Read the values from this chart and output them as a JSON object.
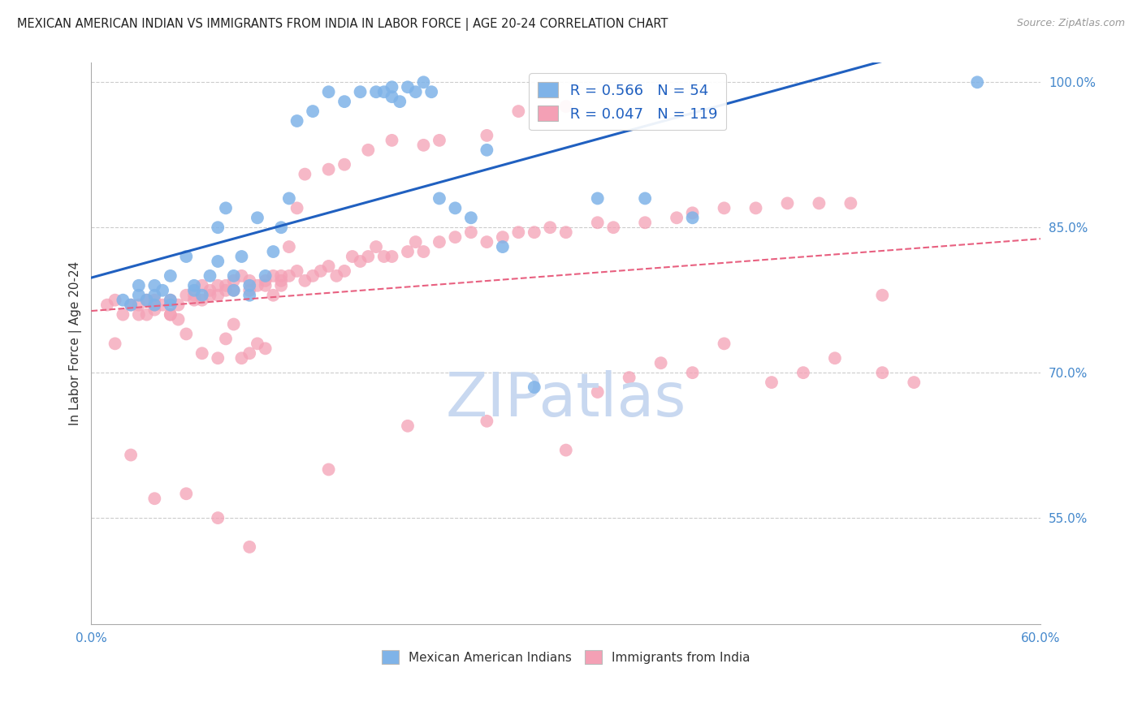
{
  "title": "MEXICAN AMERICAN INDIAN VS IMMIGRANTS FROM INDIA IN LABOR FORCE | AGE 20-24 CORRELATION CHART",
  "source": "Source: ZipAtlas.com",
  "ylabel": "In Labor Force | Age 20-24",
  "xlim": [
    0.0,
    0.6
  ],
  "ylim": [
    0.44,
    1.02
  ],
  "xticks": [
    0.0,
    0.1,
    0.2,
    0.3,
    0.4,
    0.5,
    0.6
  ],
  "xticklabels": [
    "0.0%",
    "",
    "",
    "",
    "",
    "",
    "60.0%"
  ],
  "yticks_right": [
    0.55,
    0.7,
    0.85,
    1.0
  ],
  "ytick_labels_right": [
    "55.0%",
    "70.0%",
    "85.0%",
    "100.0%"
  ],
  "blue_R": 0.566,
  "blue_N": 54,
  "pink_R": 0.047,
  "pink_N": 119,
  "blue_label": "Mexican American Indians",
  "pink_label": "Immigrants from India",
  "blue_color": "#7fb3e8",
  "pink_color": "#f4a0b5",
  "blue_line_color": "#2060c0",
  "pink_line_color": "#e86080",
  "legend_R_color": "#2060c0",
  "watermark": "ZIPatlas",
  "watermark_color": "#c8d8f0",
  "blue_scatter_x": [
    0.02,
    0.03,
    0.025,
    0.035,
    0.04,
    0.04,
    0.045,
    0.05,
    0.05,
    0.06,
    0.065,
    0.065,
    0.07,
    0.075,
    0.08,
    0.08,
    0.085,
    0.09,
    0.09,
    0.095,
    0.1,
    0.1,
    0.105,
    0.11,
    0.115,
    0.12,
    0.125,
    0.03,
    0.04,
    0.05,
    0.13,
    0.14,
    0.15,
    0.16,
    0.17,
    0.18,
    0.185,
    0.19,
    0.19,
    0.195,
    0.2,
    0.205,
    0.21,
    0.215,
    0.22,
    0.23,
    0.24,
    0.25,
    0.26,
    0.28,
    0.32,
    0.35,
    0.38,
    0.56
  ],
  "blue_scatter_y": [
    0.775,
    0.78,
    0.77,
    0.775,
    0.77,
    0.78,
    0.785,
    0.775,
    0.77,
    0.82,
    0.785,
    0.79,
    0.78,
    0.8,
    0.815,
    0.85,
    0.87,
    0.785,
    0.8,
    0.82,
    0.78,
    0.79,
    0.86,
    0.8,
    0.825,
    0.85,
    0.88,
    0.79,
    0.79,
    0.8,
    0.96,
    0.97,
    0.99,
    0.98,
    0.99,
    0.99,
    0.99,
    0.985,
    0.995,
    0.98,
    0.995,
    0.99,
    1.0,
    0.99,
    0.88,
    0.87,
    0.86,
    0.93,
    0.83,
    0.685,
    0.88,
    0.88,
    0.86,
    1.0
  ],
  "pink_scatter_x": [
    0.01,
    0.015,
    0.02,
    0.025,
    0.03,
    0.03,
    0.035,
    0.035,
    0.04,
    0.04,
    0.04,
    0.045,
    0.05,
    0.05,
    0.055,
    0.06,
    0.065,
    0.065,
    0.07,
    0.07,
    0.075,
    0.075,
    0.08,
    0.08,
    0.085,
    0.085,
    0.09,
    0.09,
    0.095,
    0.1,
    0.1,
    0.105,
    0.11,
    0.11,
    0.115,
    0.12,
    0.12,
    0.125,
    0.13,
    0.135,
    0.14,
    0.145,
    0.15,
    0.155,
    0.16,
    0.165,
    0.17,
    0.175,
    0.18,
    0.185,
    0.19,
    0.2,
    0.205,
    0.21,
    0.22,
    0.23,
    0.24,
    0.25,
    0.26,
    0.27,
    0.28,
    0.29,
    0.3,
    0.32,
    0.33,
    0.35,
    0.37,
    0.38,
    0.4,
    0.42,
    0.44,
    0.46,
    0.48,
    0.5,
    0.015,
    0.05,
    0.055,
    0.06,
    0.07,
    0.08,
    0.085,
    0.09,
    0.095,
    0.1,
    0.105,
    0.11,
    0.115,
    0.12,
    0.125,
    0.13,
    0.135,
    0.15,
    0.16,
    0.175,
    0.19,
    0.21,
    0.22,
    0.25,
    0.27,
    0.3,
    0.32,
    0.34,
    0.36,
    0.38,
    0.4,
    0.43,
    0.45,
    0.47,
    0.5,
    0.52,
    0.025,
    0.04,
    0.06,
    0.08,
    0.1,
    0.15,
    0.2,
    0.25,
    0.3
  ],
  "pink_scatter_y": [
    0.77,
    0.775,
    0.76,
    0.77,
    0.76,
    0.77,
    0.775,
    0.76,
    0.775,
    0.77,
    0.765,
    0.77,
    0.775,
    0.76,
    0.77,
    0.78,
    0.775,
    0.78,
    0.79,
    0.775,
    0.78,
    0.785,
    0.79,
    0.78,
    0.785,
    0.79,
    0.795,
    0.785,
    0.8,
    0.795,
    0.785,
    0.79,
    0.795,
    0.79,
    0.8,
    0.795,
    0.79,
    0.8,
    0.805,
    0.795,
    0.8,
    0.805,
    0.81,
    0.8,
    0.805,
    0.82,
    0.815,
    0.82,
    0.83,
    0.82,
    0.82,
    0.825,
    0.835,
    0.825,
    0.835,
    0.84,
    0.845,
    0.835,
    0.84,
    0.845,
    0.845,
    0.85,
    0.845,
    0.855,
    0.85,
    0.855,
    0.86,
    0.865,
    0.87,
    0.87,
    0.875,
    0.875,
    0.875,
    0.78,
    0.73,
    0.76,
    0.755,
    0.74,
    0.72,
    0.715,
    0.735,
    0.75,
    0.715,
    0.72,
    0.73,
    0.725,
    0.78,
    0.8,
    0.83,
    0.87,
    0.905,
    0.91,
    0.915,
    0.93,
    0.94,
    0.935,
    0.94,
    0.945,
    0.97,
    0.975,
    0.68,
    0.695,
    0.71,
    0.7,
    0.73,
    0.69,
    0.7,
    0.715,
    0.7,
    0.69,
    0.615,
    0.57,
    0.575,
    0.55,
    0.52,
    0.6,
    0.645,
    0.65,
    0.62
  ]
}
